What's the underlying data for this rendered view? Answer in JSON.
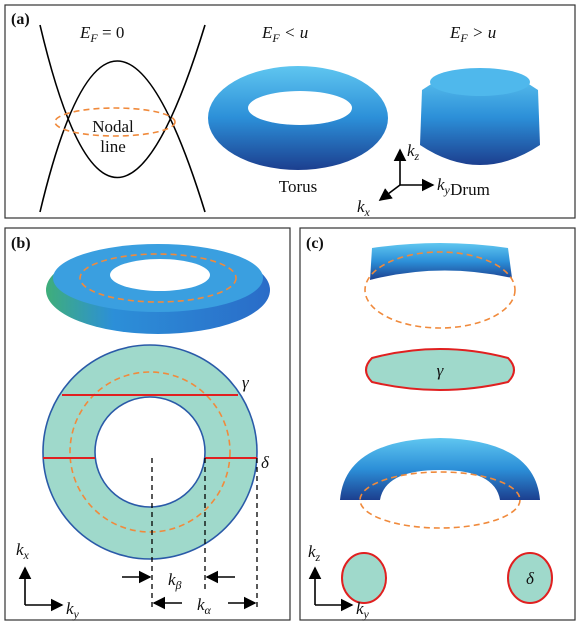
{
  "panel_a": {
    "label": "(a)",
    "heading_1": {
      "base": "E",
      "sub": "F",
      "rest": " = 0"
    },
    "heading_2": {
      "base": "E",
      "sub": "F",
      "rest": " < u"
    },
    "heading_3": {
      "base": "E",
      "sub": "F",
      "rest": " > u"
    },
    "nodal_line": [
      "Nodal",
      "line"
    ],
    "torus": "Torus",
    "drum": "Drum",
    "axes": {
      "z": {
        "base": "k",
        "sub": "z"
      },
      "y": {
        "base": "k",
        "sub": "y"
      },
      "x": {
        "base": "k",
        "sub": "x"
      }
    }
  },
  "panel_b": {
    "label": "(b)",
    "gamma": "γ",
    "delta": "δ",
    "k_beta": {
      "base": "k",
      "sub": "β"
    },
    "k_alpha": {
      "base": "k",
      "sub": "α"
    },
    "axes": {
      "x": {
        "base": "k",
        "sub": "x"
      },
      "y": {
        "base": "k",
        "sub": "y"
      }
    }
  },
  "panel_c": {
    "label": "(c)",
    "gamma": "γ",
    "delta": "δ",
    "axes": {
      "z": {
        "base": "k",
        "sub": "z"
      },
      "y": {
        "base": "k",
        "sub": "y"
      }
    }
  }
}
